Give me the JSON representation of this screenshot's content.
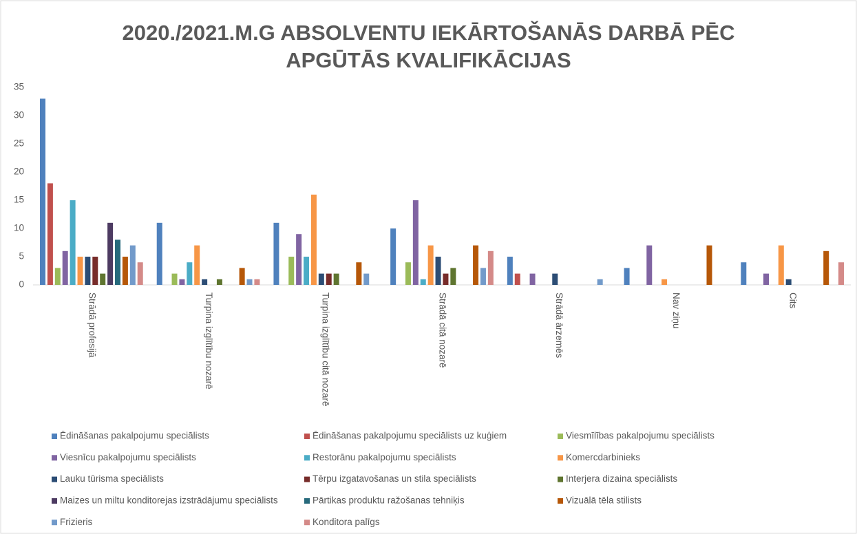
{
  "chart_data": {
    "type": "bar",
    "title": "2020./2021.M.G  ABSOLVENTU IEKĀRTOŠANĀS DARBĀ PĒC APGŪTĀS KVALIFIKĀCIJAS",
    "categories": [
      "Strādā profesijā",
      "Turpina izglītību nozarē",
      "Turpina izglītību citā nozarē",
      "Strādā citā nozarē",
      "Strādā ārzemēs",
      "Nav ziņu",
      "Cits"
    ],
    "series": [
      {
        "name": "Ēdināšanas pakalpojumu  speciālists",
        "color": "#4f81bd",
        "values": [
          33,
          11,
          11,
          10,
          5,
          3,
          4
        ]
      },
      {
        "name": "Ēdināšanas pakalpojumu  speciālists uz kuģiem",
        "color": "#c0504d",
        "values": [
          18,
          0,
          0,
          0,
          2,
          0,
          0
        ]
      },
      {
        "name": "Viesmīlības pakalpojumu speciālists",
        "color": "#9bbb59",
        "values": [
          3,
          2,
          5,
          4,
          0,
          0,
          0
        ]
      },
      {
        "name": "Viesnīcu pakalpojumu speciālists",
        "color": "#8064a2",
        "values": [
          6,
          1,
          9,
          15,
          2,
          7,
          2
        ]
      },
      {
        "name": "Restorānu pakalpojumu speciālists",
        "color": "#4bacc6",
        "values": [
          15,
          4,
          5,
          1,
          0,
          0,
          0
        ]
      },
      {
        "name": "Komercdarbinieks",
        "color": "#f79646",
        "values": [
          5,
          7,
          16,
          7,
          0,
          1,
          7
        ]
      },
      {
        "name": "Lauku tūrisma speciālists",
        "color": "#2c4d75",
        "values": [
          5,
          1,
          2,
          5,
          2,
          0,
          1
        ]
      },
      {
        "name": "Tērpu izgatavošanas un stila speciālists",
        "color": "#772c2a",
        "values": [
          5,
          0,
          2,
          2,
          0,
          0,
          0
        ]
      },
      {
        "name": "Interjera dizaina speciālists",
        "color": "#5f7530",
        "values": [
          2,
          1,
          2,
          3,
          0,
          0,
          0
        ]
      },
      {
        "name": "Maizes un miltu konditorejas izstrādājumu speciālists",
        "color": "#4d3b62",
        "values": [
          11,
          0,
          0,
          0,
          0,
          0,
          0
        ]
      },
      {
        "name": "Pārtikas produktu ražošanas tehniķis",
        "color": "#276a7c",
        "values": [
          8,
          0,
          0,
          0,
          0,
          0,
          0
        ]
      },
      {
        "name": "Vizuālā tēla stilists",
        "color": "#b65708",
        "values": [
          5,
          3,
          4,
          7,
          0,
          7,
          6
        ]
      },
      {
        "name": "Frizieris",
        "color": "#729aca",
        "values": [
          7,
          1,
          2,
          3,
          1,
          0,
          0
        ]
      },
      {
        "name": "Konditora palīgs",
        "color": "#d48a88",
        "values": [
          4,
          1,
          0,
          6,
          0,
          0,
          4
        ]
      }
    ],
    "ylim": [
      0,
      35
    ],
    "yticks": [
      0,
      5,
      10,
      15,
      20,
      25,
      30,
      35
    ],
    "grid": false
  }
}
